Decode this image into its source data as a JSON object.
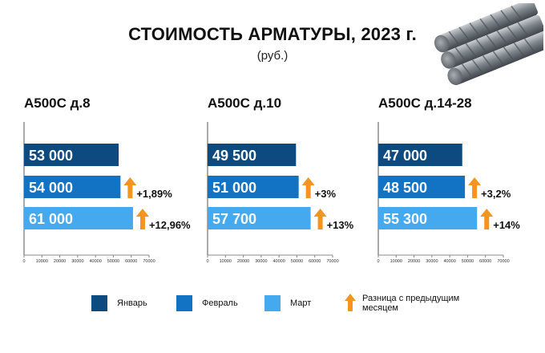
{
  "header": {
    "title": "СТОИМОСТЬ АРМАТУРЫ, 2023 г.",
    "subtitle": "(руб.)"
  },
  "colors": {
    "january": "#0d4a80",
    "february": "#1273c4",
    "march": "#45a9ef",
    "arrow": "#f7941d"
  },
  "icons": {
    "header_image": "rebar-bundle-icon",
    "difference": "up-arrow-icon"
  },
  "legend": {
    "january": "Январь",
    "february": "Февраль",
    "march": "Март",
    "difference": "Разница с предыдущим месяцем"
  },
  "chart_data": [
    {
      "type": "bar",
      "orientation": "horizontal",
      "title": "А500С д.8",
      "categories": [
        "Январь",
        "Февраль",
        "Март"
      ],
      "values": [
        53000,
        54000,
        61000
      ],
      "value_labels": [
        "53 000",
        "54 000",
        "61 000"
      ],
      "change_labels": [
        "",
        "+1,89%",
        "+12,96%"
      ],
      "xlim": [
        0,
        70000
      ],
      "ticks": [
        "0",
        "10000",
        "20000",
        "30000",
        "40000",
        "50000",
        "60000",
        "70000"
      ]
    },
    {
      "type": "bar",
      "orientation": "horizontal",
      "title": "А500С д.10",
      "categories": [
        "Январь",
        "Февраль",
        "Март"
      ],
      "values": [
        49500,
        51000,
        57700
      ],
      "value_labels": [
        "49 500",
        "51 000",
        "57 700"
      ],
      "change_labels": [
        "",
        "+3%",
        "+13%"
      ],
      "xlim": [
        0,
        70000
      ],
      "ticks": [
        "0",
        "10000",
        "20000",
        "30000",
        "40000",
        "50000",
        "60000",
        "70000"
      ]
    },
    {
      "type": "bar",
      "orientation": "horizontal",
      "title": "А500С д.14-28",
      "categories": [
        "Январь",
        "Февраль",
        "Март"
      ],
      "values": [
        47000,
        48500,
        55300
      ],
      "value_labels": [
        "47 000",
        "48 500",
        "55 300"
      ],
      "change_labels": [
        "",
        "+3,2%",
        "+14%"
      ],
      "xlim": [
        0,
        70000
      ],
      "ticks": [
        "0",
        "10000",
        "20000",
        "30000",
        "40000",
        "50000",
        "60000",
        "70000"
      ]
    }
  ]
}
